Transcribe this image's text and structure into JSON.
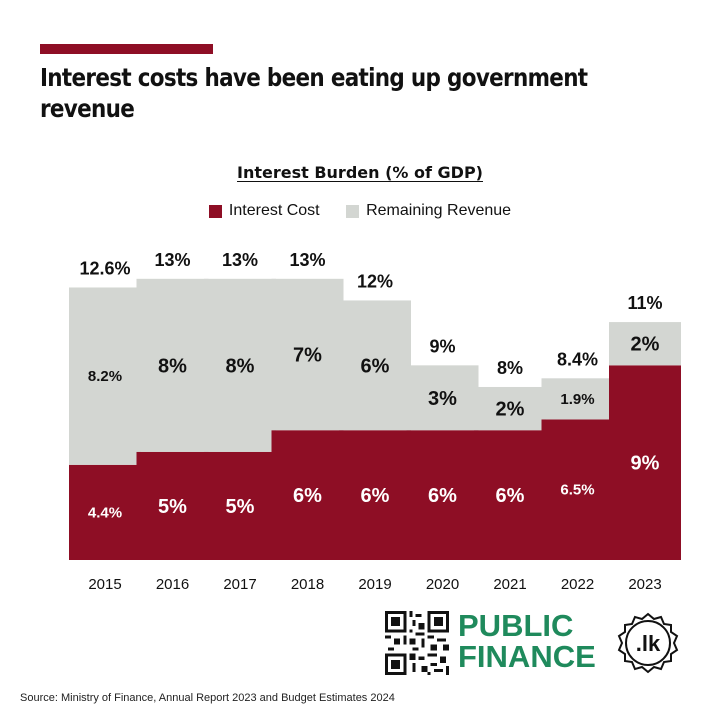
{
  "headline": "Interest costs have been eating up government revenue",
  "source": "Source: Ministry of Finance, Annual Report 2023 and Budget Estimates 2024",
  "brand": {
    "line1": "PUBLIC",
    "line2": "FINANCE",
    "seal": ".lk"
  },
  "colors": {
    "interest": "#8e0e25",
    "remaining": "#d3d6d2",
    "accent": "#8e0e25",
    "brand_green": "#1f8a5c"
  },
  "chart_data": {
    "type": "bar",
    "stacked": true,
    "title": "Interest Burden (% of GDP)",
    "categories": [
      "2015",
      "2016",
      "2017",
      "2018",
      "2019",
      "2020",
      "2021",
      "2022",
      "2023"
    ],
    "series": [
      {
        "name": "Interest Cost",
        "values": [
          4.4,
          5,
          5,
          6,
          6,
          6,
          6,
          6.5,
          9
        ],
        "labels": [
          "4.4%",
          "5%",
          "5%",
          "6%",
          "6%",
          "6%",
          "6%",
          "6.5%",
          "9%"
        ]
      },
      {
        "name": "Remaining Revenue",
        "values": [
          8.2,
          8,
          8,
          7,
          6,
          3,
          2,
          1.9,
          2
        ],
        "labels": [
          "8.2%",
          "8%",
          "8%",
          "7%",
          "6%",
          "3%",
          "2%",
          "1.9%",
          "2%"
        ]
      }
    ],
    "total_labels": [
      "12.6%",
      "13%",
      "13%",
      "13%",
      "12%",
      "9%",
      "8%",
      "8.4%",
      "11%"
    ],
    "legend": "top-center",
    "grid": false,
    "ylim": [
      0,
      13.5
    ]
  }
}
